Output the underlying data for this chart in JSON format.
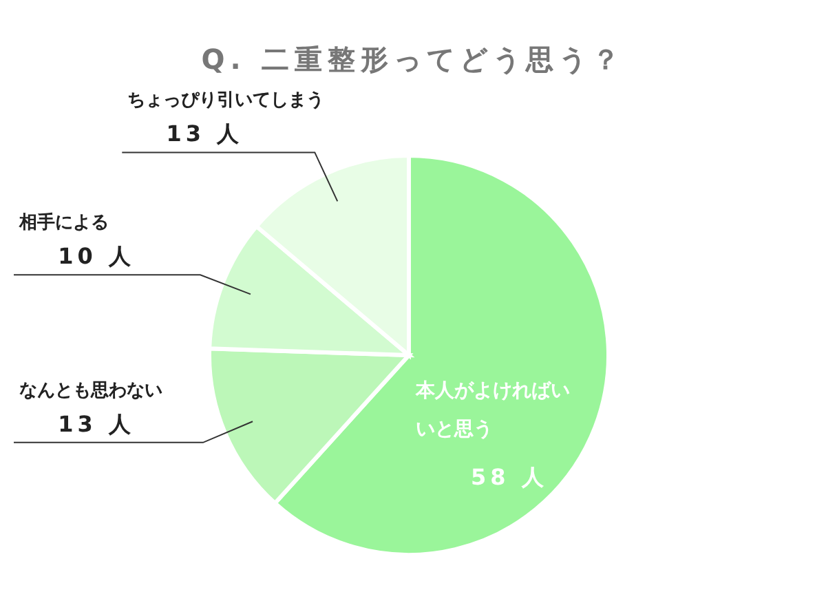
{
  "chart_data": {
    "type": "pie",
    "title": "Q. 二重整形ってどう思う？",
    "categories": [
      "本人がよければいいと思う",
      "なんとも思わない",
      "相手による",
      "ちょっぴり引いてしまう"
    ],
    "values": [
      58,
      13,
      10,
      13
    ],
    "colors": [
      "#9af59a",
      "#bcf7b8",
      "#d2fbd0",
      "#e8fde6"
    ],
    "value_labels": [
      "58 人",
      "13 人",
      "10 人",
      "13 人"
    ]
  }
}
